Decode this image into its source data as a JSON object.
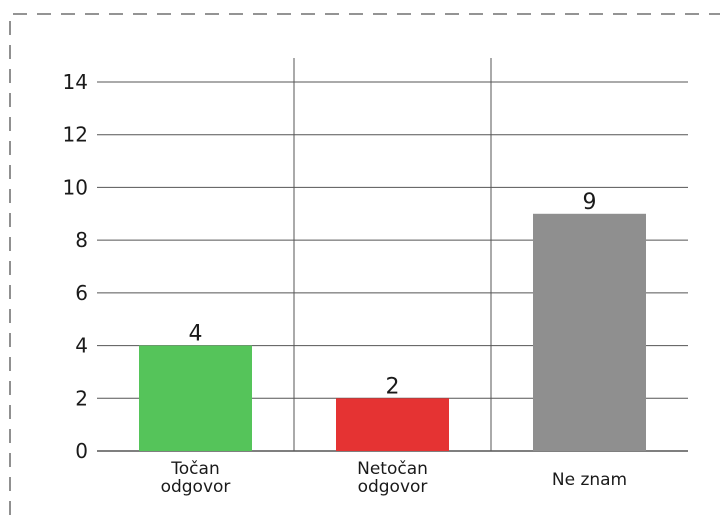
{
  "chart_data": {
    "type": "bar",
    "categories": [
      "Točan\nodgovor",
      "Netočan\nodgovor",
      "Ne znam"
    ],
    "values": [
      4,
      2,
      9
    ],
    "colors": [
      "#55c45a",
      "#e53333",
      "#8f8f8f"
    ],
    "data_labels": [
      "4",
      "2",
      "9"
    ],
    "y_ticks": [
      "0",
      "2",
      "4",
      "6",
      "8",
      "10",
      "12",
      "14"
    ],
    "ylim": [
      0,
      14
    ],
    "grid": true,
    "title": "",
    "xlabel": "",
    "ylabel": ""
  },
  "style": {
    "grid_color": "#555555",
    "frame_color": "#555555"
  }
}
